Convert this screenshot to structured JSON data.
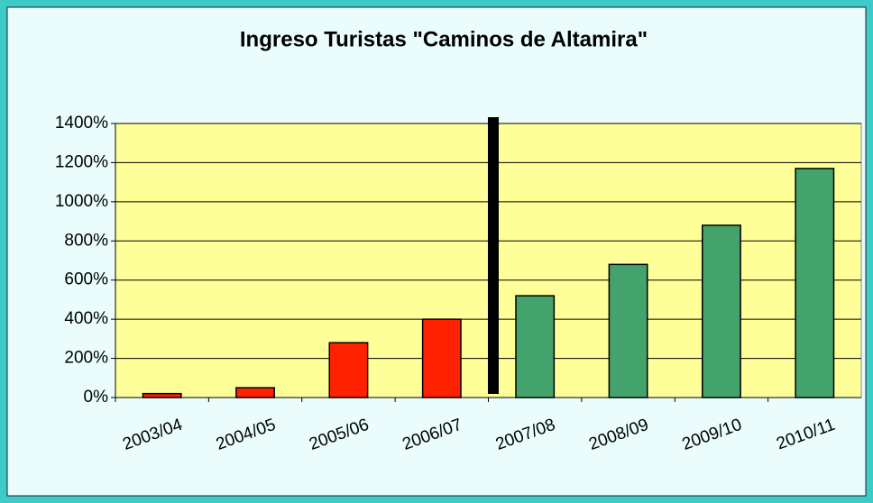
{
  "chart_data": {
    "type": "bar",
    "title": "Ingreso Turistas \"Caminos de Altamira\"",
    "categories": [
      "2003/04",
      "2004/05",
      "2005/06",
      "2006/07",
      "2007/08",
      "2008/09",
      "2009/10",
      "2010/11"
    ],
    "values": [
      20,
      50,
      280,
      400,
      520,
      680,
      880,
      1170
    ],
    "colors": [
      "#ff2200",
      "#ff2200",
      "#ff2200",
      "#ff2200",
      "#44a36c",
      "#44a36c",
      "#44a36c",
      "#44a36c"
    ],
    "ylim": [
      0,
      1400
    ],
    "yticks": [
      {
        "value": 0,
        "label": "0%"
      },
      {
        "value": 200,
        "label": "200%"
      },
      {
        "value": 400,
        "label": "400%"
      },
      {
        "value": 600,
        "label": "600%"
      },
      {
        "value": 800,
        "label": "800%"
      },
      {
        "value": 1000,
        "label": "1000%"
      },
      {
        "value": 1200,
        "label": "1200%"
      },
      {
        "value": 1400,
        "label": "1400%"
      }
    ],
    "grid": true
  }
}
